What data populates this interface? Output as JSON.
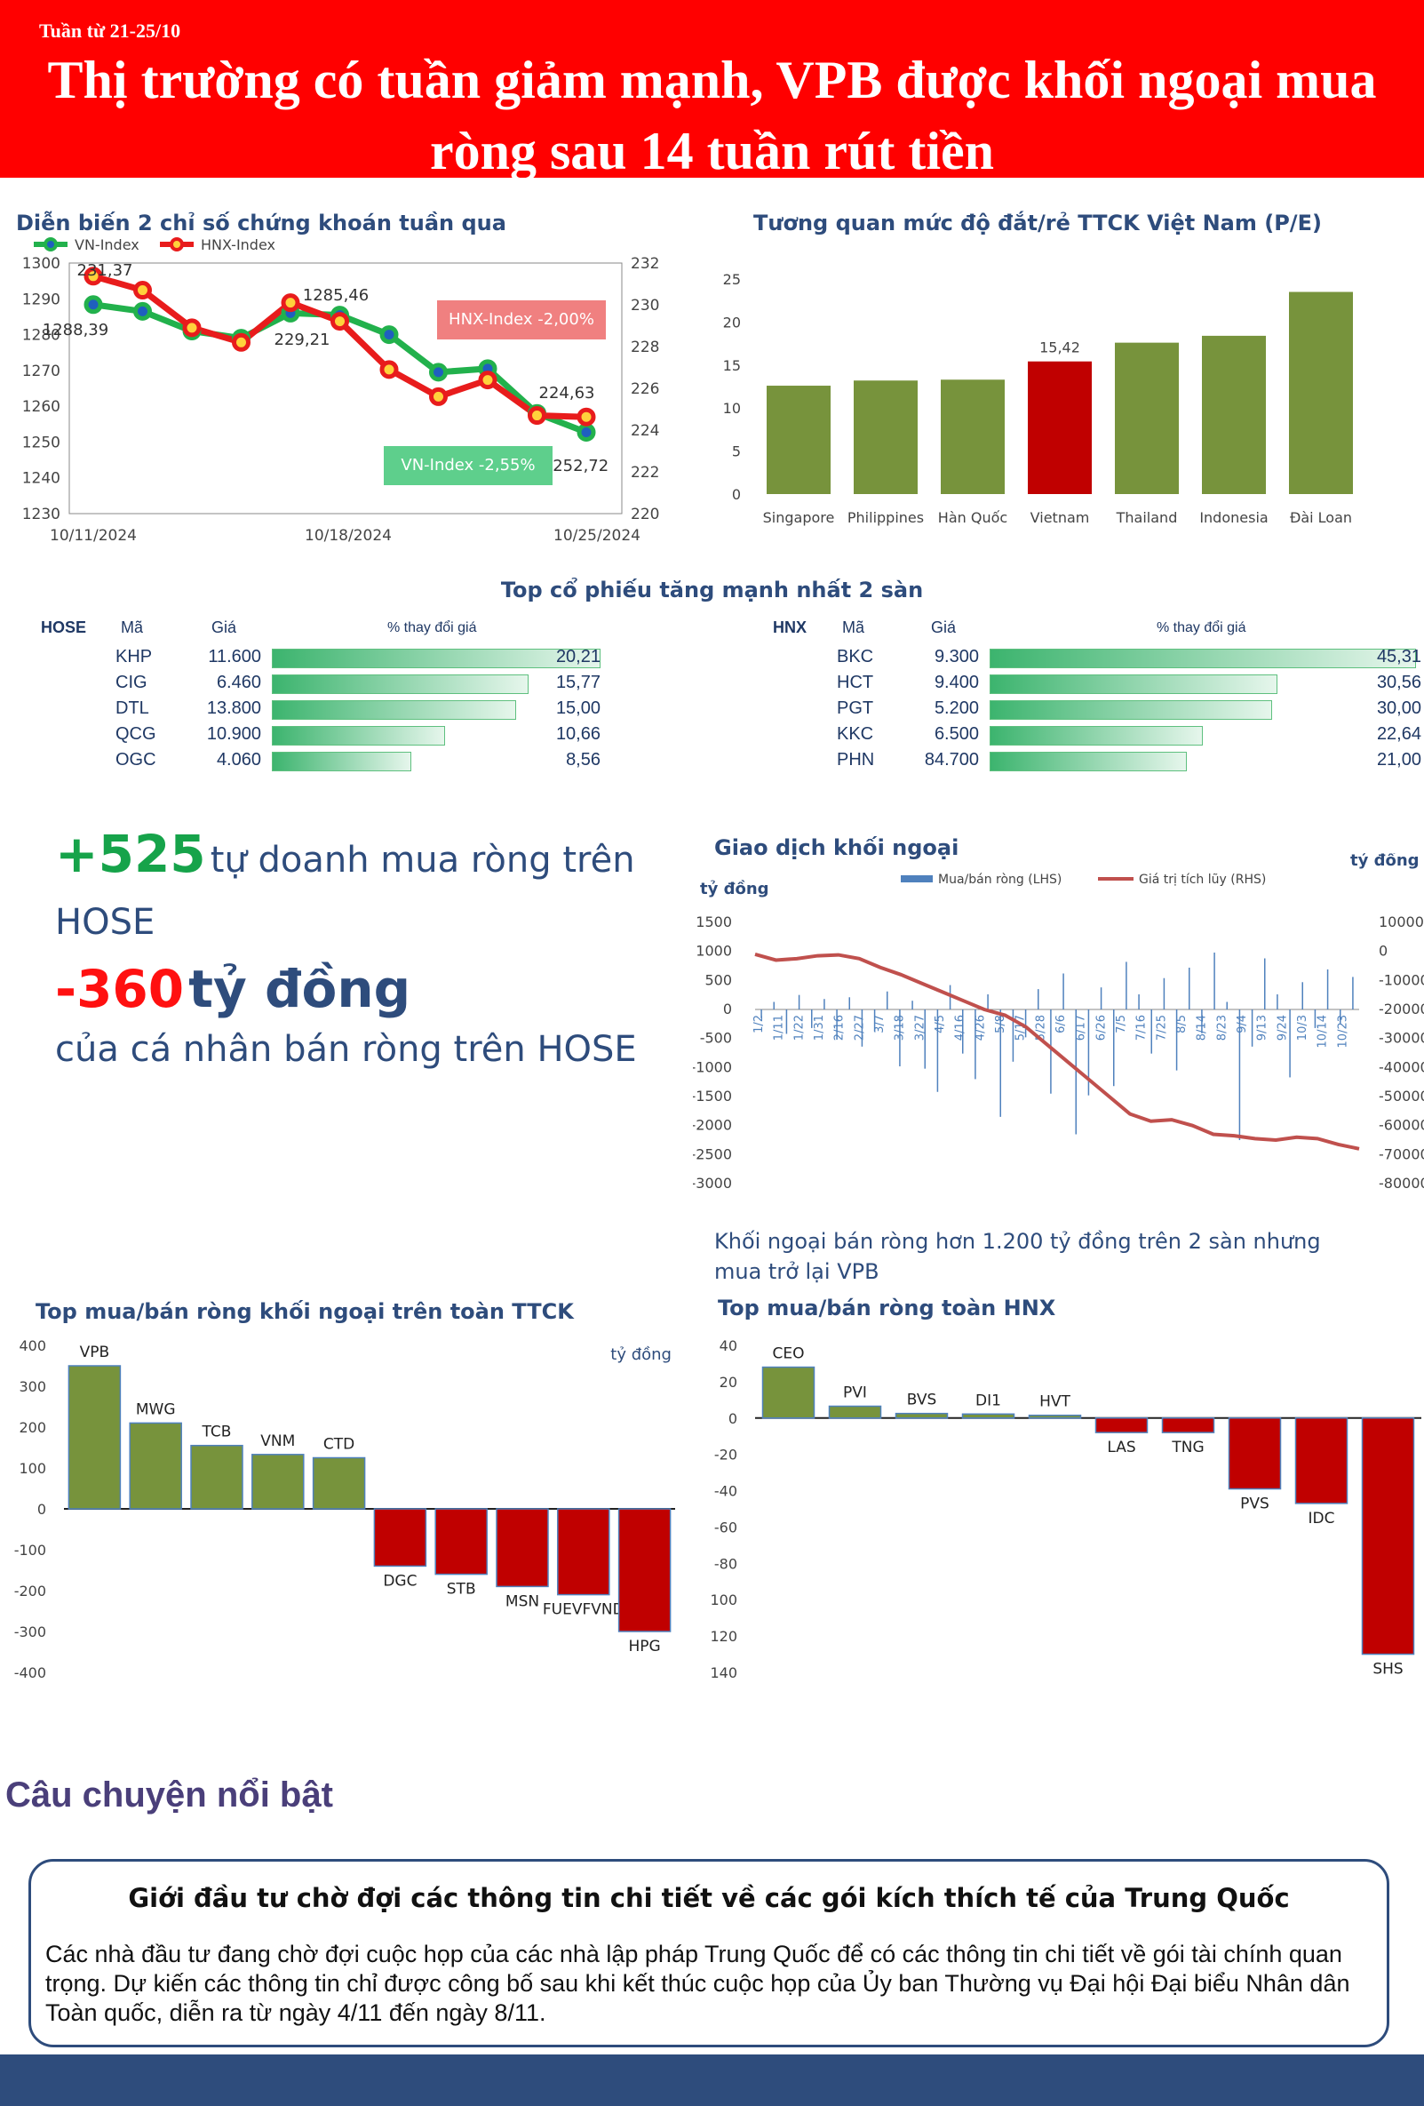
{
  "header": {
    "week": "Tuần từ 21-25/10",
    "headline": "Thị trường có tuần giảm mạnh, VPB được khối ngoại mua ròng sau 14 tuần rút tiền"
  },
  "colors": {
    "banner": "#ff0000",
    "green_bar": "#77933c",
    "red_bar": "#c00000",
    "vn_line": "#22b14c",
    "hnx_line": "#e81c1c",
    "navy": "#2e4c7c"
  },
  "index_chart": {
    "title": "Diễn biến 2 chỉ số chứng khoán tuần qua",
    "vn_callout": "VN-Index -2,55%",
    "hnx_callout": "HNX-Index -2,00%"
  },
  "pe_chart": {
    "title": "Tương quan mức độ đắt/rẻ TTCK Việt Nam (P/E)"
  },
  "top_gainers": {
    "title": "Top cổ phiếu tăng mạnh nhất 2 sàn",
    "col_code": "Mã",
    "col_price": "Giá",
    "col_change": "% thay đổi giá",
    "hose": {
      "exchange": "HOSE",
      "rows": [
        {
          "code": "KHP",
          "price": "11.600",
          "change": "20,21",
          "value": 20.21
        },
        {
          "code": "CIG",
          "price": "6.460",
          "change": "15,77",
          "value": 15.77
        },
        {
          "code": "DTL",
          "price": "13.800",
          "change": "15,00",
          "value": 15.0
        },
        {
          "code": "QCG",
          "price": "10.900",
          "change": "10,66",
          "value": 10.66
        },
        {
          "code": "OGC",
          "price": "4.060",
          "change": "8,56",
          "value": 8.56
        }
      ]
    },
    "hnx": {
      "exchange": "HNX",
      "rows": [
        {
          "code": "BKC",
          "price": "9.300",
          "change": "45,31",
          "value": 45.31
        },
        {
          "code": "HCT",
          "price": "9.400",
          "change": "30,56",
          "value": 30.56
        },
        {
          "code": "PGT",
          "price": "5.200",
          "change": "30,00",
          "value": 30.0
        },
        {
          "code": "KKC",
          "price": "6.500",
          "change": "22,64",
          "value": 22.64
        },
        {
          "code": "PHN",
          "price": "84.700",
          "change": "21,00",
          "value": 21.0
        }
      ]
    }
  },
  "stats": {
    "proprietary_value": "+525",
    "proprietary_text": "tự doanh mua ròng trên HOSE",
    "individual_value": "-360",
    "individual_unit": "tỷ đồng",
    "individual_text": "của cá nhân bán ròng trên HOSE"
  },
  "foreign_chart": {
    "title": "Giao dịch khối ngoại",
    "caption": "Khối ngoại bán ròng hơn 1.200 tỷ đồng trên 2 sàn nhưng mua trở lại VPB"
  },
  "foreign_top_chart": {
    "title": "Top mua/bán ròng khối ngoại trên toàn TTCK"
  },
  "hnx_top_chart": {
    "title": "Top mua/bán ròng toàn HNX"
  },
  "story": {
    "heading": "Câu chuyện nổi bật",
    "title": "Giới đầu tư chờ đợi các thông tin chi tiết về các gói kích thích tế của Trung Quốc",
    "body": "Các nhà đầu tư đang chờ đợi cuộc họp của các nhà lập pháp Trung Quốc để có các thông tin chi tiết về gói tài chính quan trọng. Dự kiến các thông tin chỉ được công bố sau khi kết thúc cuộc họp của Ủy ban Thường vụ Đại hội Đại biểu Nhân dân Toàn quốc, diễn ra từ ngày 4/11 đến ngày 8/11."
  },
  "chart_data": [
    {
      "type": "line",
      "title": "Diễn biến 2 chỉ số chứng khoán tuần qua",
      "x_ticks": [
        "10/11/2024",
        "10/18/2024",
        "10/25/2024"
      ],
      "series": [
        {
          "name": "VN-Index",
          "axis": "left",
          "values": [
            1288.39,
            1286.5,
            1281.0,
            1279.0,
            1286.0,
            1285.46,
            1280.0,
            1269.5,
            1270.5,
            1258.0,
            1252.72
          ]
        },
        {
          "name": "HNX-Index",
          "axis": "right",
          "values": [
            231.37,
            230.7,
            228.9,
            228.2,
            230.1,
            229.21,
            226.9,
            225.6,
            226.4,
            224.7,
            224.63
          ]
        }
      ],
      "data_labels": [
        "231,37",
        "1288,39",
        "1285,46",
        "229,21",
        "224,63",
        "1252,72"
      ],
      "ylim_left": [
        1230,
        1300
      ],
      "ylim_right": [
        220,
        232
      ],
      "yticks_left": [
        "1230",
        "1240",
        "1250",
        "1260",
        "1270",
        "1280",
        "1290",
        "1300"
      ],
      "yticks_right": [
        "220",
        "222",
        "224",
        "226",
        "228",
        "230",
        "232"
      ],
      "legend": "top-left"
    },
    {
      "type": "bar",
      "title": "Tương quan mức độ đắt/rẻ TTCK Việt Nam (P/E)",
      "categories": [
        "Singapore",
        "Philippines",
        "Hàn Quốc",
        "Vietnam",
        "Thailand",
        "Indonesia",
        "Đài Loan"
      ],
      "values": [
        12.6,
        13.2,
        13.3,
        15.42,
        17.6,
        18.4,
        23.5
      ],
      "highlight": "Vietnam",
      "data_label": "15,42",
      "ylim": [
        0,
        25
      ],
      "yticks": [
        "0",
        "5",
        "10",
        "15",
        "20",
        "25"
      ]
    },
    {
      "type": "bar",
      "title": "Giao dịch khối ngoại",
      "series_names": [
        "Mua/bán ròng (LHS)",
        "Giá trị tích lũy (RHS)"
      ],
      "ylabel_left": "tỷ đồng",
      "ylabel_right": "tỷ đồng",
      "ylim_left": [
        -3000,
        1500
      ],
      "ylim_right": [
        -80000,
        10000
      ],
      "yticks_left": [
        "1500",
        "1000",
        "500",
        "0",
        "-500",
        "-1000",
        "-1500",
        "-2000",
        "-2500",
        "-3000"
      ],
      "yticks_right": [
        "10000",
        "0",
        "-10000",
        "-20000",
        "-30000",
        "-40000",
        "-50000",
        "-60000",
        "-70000",
        "-80000"
      ],
      "x_ticks": [
        "1/2",
        "1/11",
        "1/22",
        "1/31",
        "2/16",
        "2/27",
        "3/7",
        "3/18",
        "3/27",
        "4/5",
        "4/16",
        "4/26",
        "5/8",
        "5/17",
        "5/28",
        "6/6",
        "6/17",
        "6/26",
        "7/5",
        "7/16",
        "7/25",
        "8/5",
        "8/14",
        "8/23",
        "9/4",
        "9/13",
        "9/24",
        "10/3",
        "10/14",
        "10/23"
      ],
      "cumulative_values": [
        -1000,
        -3000,
        -2500,
        -1500,
        -1200,
        -2500,
        -5500,
        -8000,
        -11000,
        -14000,
        -17000,
        -20000,
        -22000,
        -26000,
        -32000,
        -38000,
        -44000,
        -50000,
        -56000,
        -58500,
        -58000,
        -60000,
        -63000,
        -63500,
        -64500,
        -65000,
        -64000,
        -64500,
        -66500,
        -68000
      ],
      "daily_values": [
        -150,
        130,
        -420,
        250,
        -320,
        180,
        -520,
        210,
        -640,
        -380,
        310,
        -980,
        150,
        -1020,
        -1420,
        420,
        -760,
        -1200,
        260,
        -1850,
        -900,
        -480,
        350,
        -1450,
        620,
        -2150,
        -1480,
        380,
        -1320,
        820,
        260,
        -760,
        540,
        -1050,
        720,
        -410,
        980,
        130,
        -2250,
        -640,
        880,
        260,
        -1170,
        470,
        -320,
        690,
        -240,
        560
      ]
    },
    {
      "type": "bar",
      "title": "Top mua/bán ròng khối ngoại trên toàn TTCK",
      "categories": [
        "VPB",
        "MWG",
        "TCB",
        "VNM",
        "CTD",
        "DGC",
        "STB",
        "MSN",
        "FUEVFVND",
        "HPG"
      ],
      "values": [
        350,
        210,
        155,
        133,
        125,
        -140,
        -160,
        -190,
        -210,
        -300
      ],
      "ylabel": "tỷ đồng",
      "ylim": [
        -400,
        400
      ],
      "yticks": [
        "400",
        "300",
        "200",
        "100",
        "0",
        "-100",
        "-200",
        "-300",
        "-400"
      ]
    },
    {
      "type": "bar",
      "title": "Top mua/bán ròng toàn HNX",
      "categories": [
        "CEO",
        "PVI",
        "BVS",
        "DI1",
        "HVT",
        "LAS",
        "TNG",
        "PVS",
        "IDC",
        "SHS"
      ],
      "values": [
        28,
        6.5,
        2.5,
        2.2,
        1.5,
        -8,
        -8,
        -39,
        -47,
        -130
      ],
      "ylim": [
        -140,
        40
      ],
      "yticks": [
        "40",
        "20",
        "0",
        "-20",
        "-40",
        "-60",
        "-80",
        "-100",
        "-120",
        "-140"
      ]
    }
  ]
}
